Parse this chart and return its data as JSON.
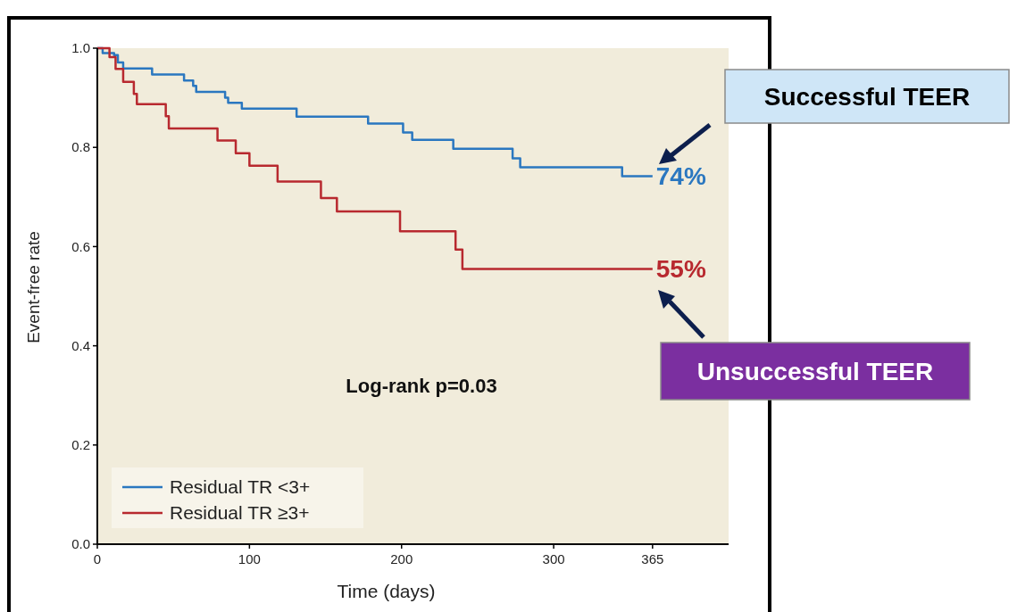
{
  "chart_data": {
    "type": "step",
    "xlabel": "Time (days)",
    "ylabel": "Event-free rate",
    "xlim": [
      0,
      415
    ],
    "xticks": [
      0,
      100,
      200,
      300,
      365
    ],
    "ylim": [
      0,
      1
    ],
    "yticks": [
      {
        "value": 0,
        "label": "0.0"
      },
      {
        "value": 0.2,
        "label": "0.2"
      },
      {
        "value": 0.4,
        "label": "0.4"
      },
      {
        "value": 0.6,
        "label": "0.6"
      },
      {
        "value": 0.8,
        "label": "0.8"
      },
      {
        "value": 1,
        "label": "1.0"
      }
    ],
    "grid": false,
    "legend": "bottom left",
    "marker": "none",
    "line_style": "solid",
    "series": [
      {
        "name": "Residual TR <3+",
        "color": "#2a77c0",
        "x": [
          0,
          3.5,
          11,
          13.5,
          17,
          36,
          57,
          63,
          65,
          84,
          86,
          95,
          131,
          178,
          201,
          207,
          234,
          273,
          278,
          345,
          365
        ],
        "values": [
          1.0,
          0.99,
          0.986,
          0.971,
          0.959,
          0.947,
          0.935,
          0.924,
          0.912,
          0.9,
          0.89,
          0.878,
          0.862,
          0.848,
          0.83,
          0.815,
          0.797,
          0.778,
          0.76,
          0.742,
          0.742
        ]
      },
      {
        "name": "Residual TR ≥3+",
        "color": "#b8292f",
        "x": [
          0,
          8,
          12,
          17,
          24,
          26,
          45,
          47,
          79,
          91,
          100,
          118.5,
          147,
          157.5,
          199,
          235.5,
          240,
          365
        ],
        "values": [
          1.0,
          0.982,
          0.958,
          0.932,
          0.908,
          0.887,
          0.863,
          0.838,
          0.814,
          0.788,
          0.763,
          0.731,
          0.698,
          0.671,
          0.631,
          0.594,
          0.555,
          0.555
        ]
      }
    ],
    "annotations": [
      "Log-rank p=0.03",
      {
        "text": "74%",
        "x": 365,
        "y": 0.742
      },
      {
        "text": "55%",
        "x": 365,
        "y": 0.555
      },
      "Successful TEER",
      "Unsuccessful TEER"
    ]
  }
}
